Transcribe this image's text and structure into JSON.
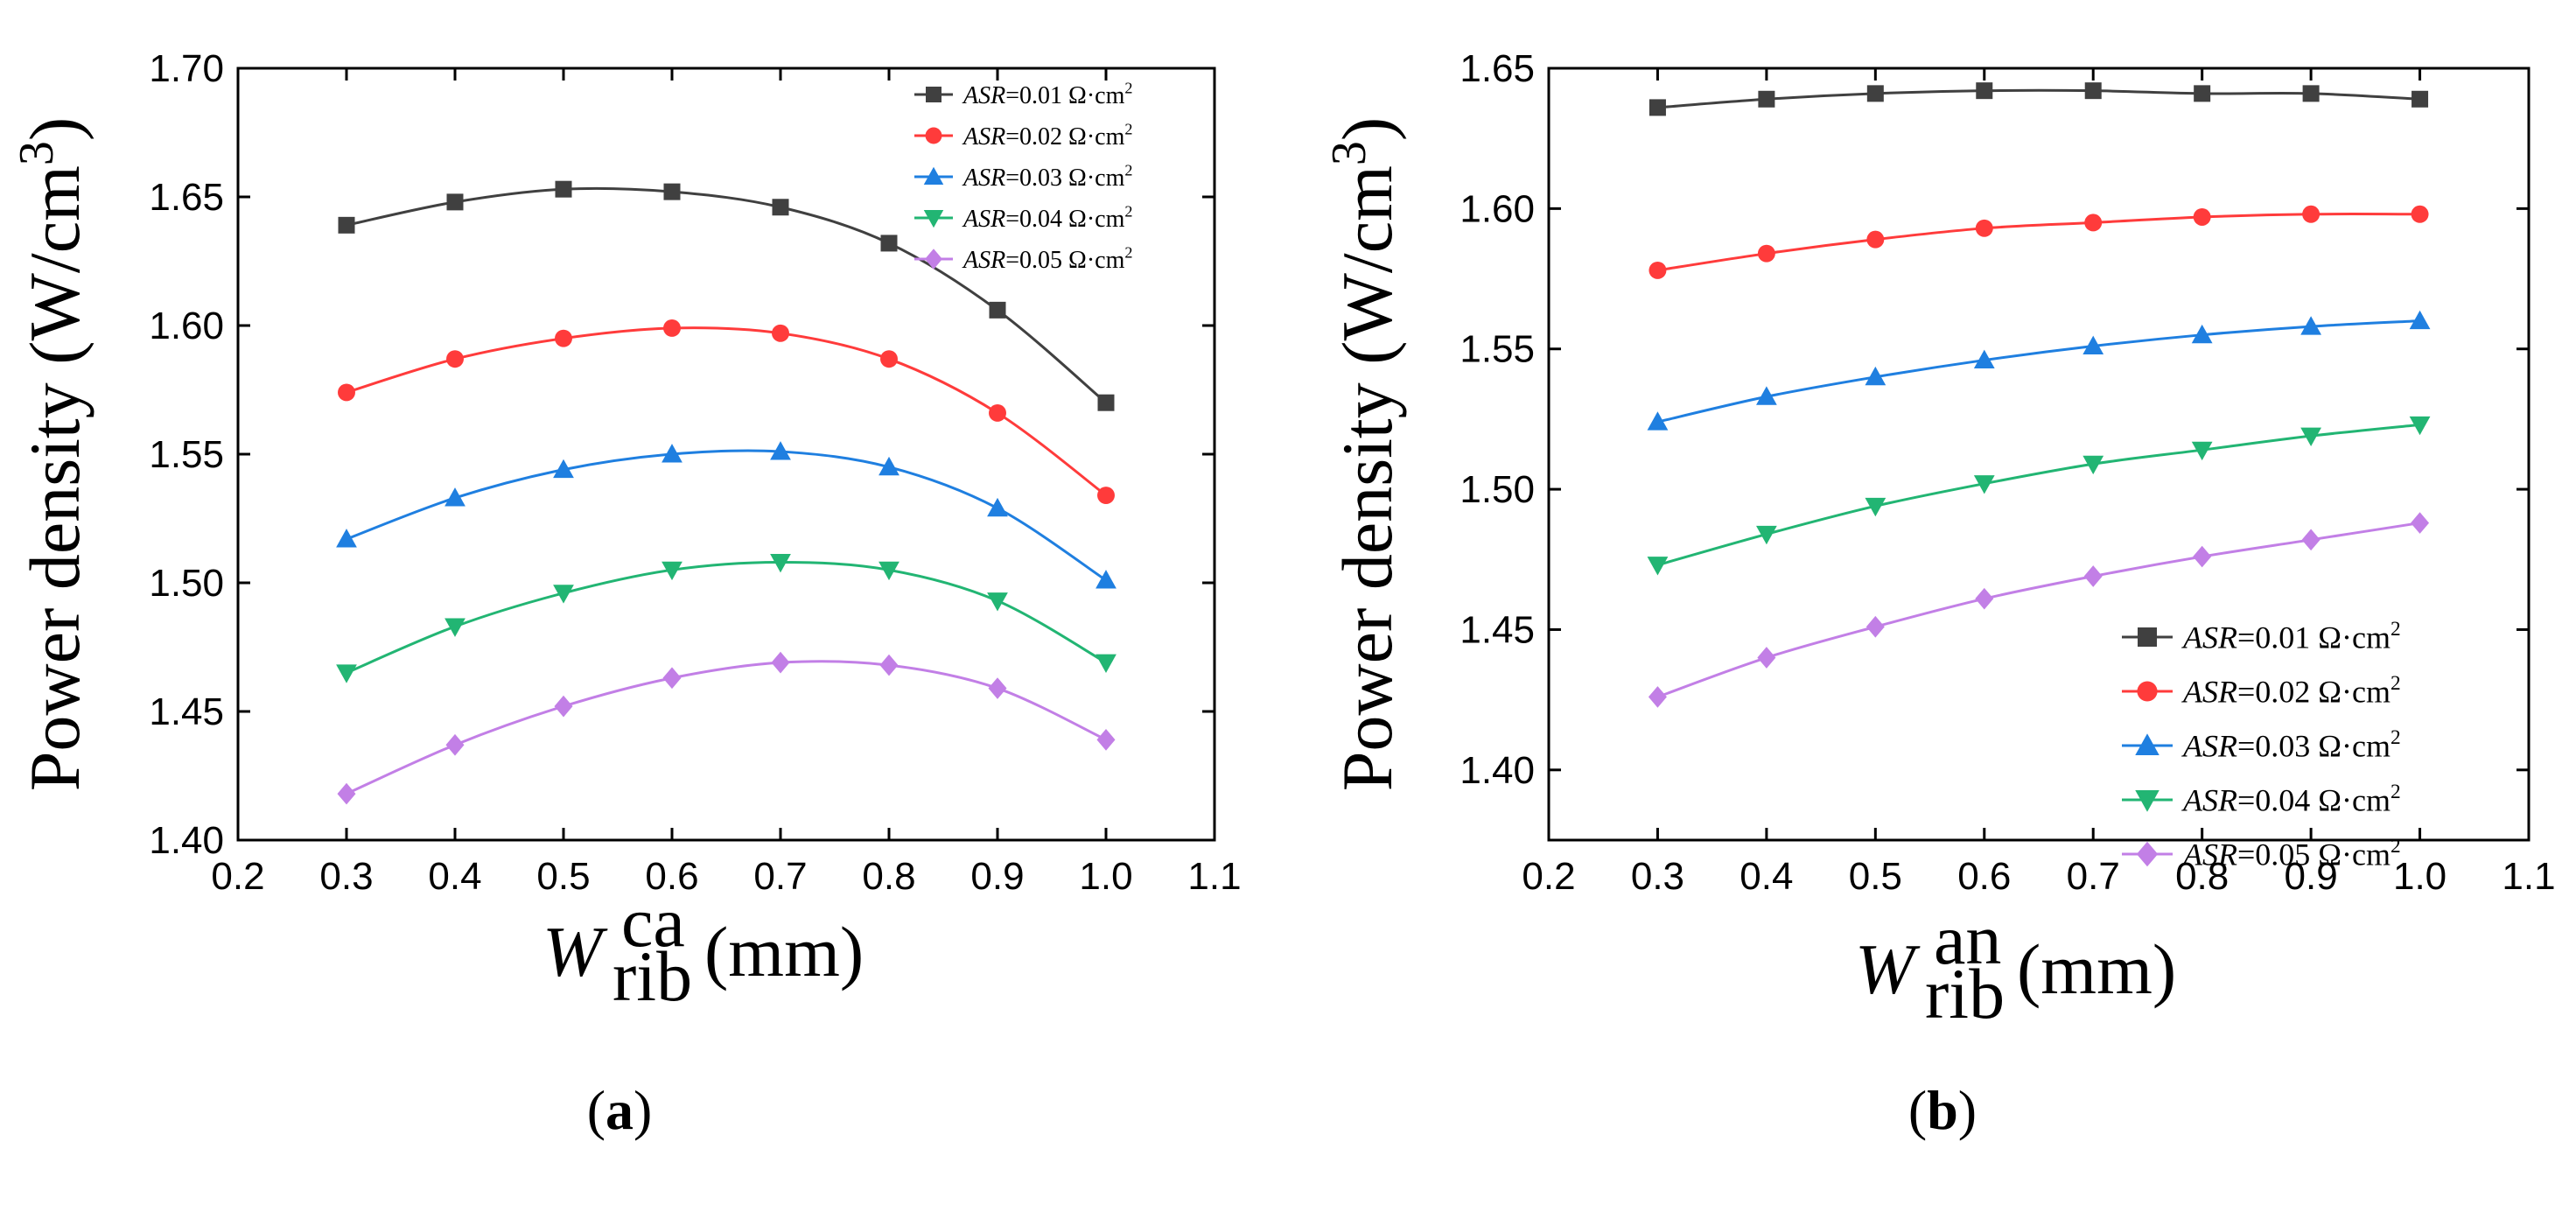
{
  "chart_data": [
    {
      "type": "line",
      "panel_label": "a",
      "title": "",
      "ylabel": "Power density (W/cm",
      "ylabel_sup": "3",
      "ylabel_close": ")",
      "xlabel_var": "W",
      "xlabel_sub": "rib",
      "xlabel_sup": "ca",
      "xlabel_unit": "(mm)",
      "xlim": [
        0.2,
        1.1
      ],
      "ylim": [
        1.4,
        1.7
      ],
      "xticks": [
        "0.2",
        "0.3",
        "0.4",
        "0.5",
        "0.6",
        "0.7",
        "0.8",
        "0.9",
        "1.0",
        "1.1"
      ],
      "yticks": [
        "1.40",
        "1.45",
        "1.50",
        "1.55",
        "1.60",
        "1.65",
        "1.70"
      ],
      "legend_position": "top-right",
      "x": [
        0.3,
        0.4,
        0.5,
        0.6,
        0.7,
        0.8,
        0.9,
        1.0
      ],
      "series": [
        {
          "name": "ASR=0.01 Ω·cm2",
          "label_var": "ASR",
          "label_val": "=0.01 Ω·cm",
          "label_sup": "2",
          "color": "#404040",
          "marker": "square",
          "values": [
            1.639,
            1.648,
            1.653,
            1.652,
            1.646,
            1.632,
            1.606,
            1.57
          ]
        },
        {
          "name": "ASR=0.02 Ω·cm2",
          "label_var": "ASR",
          "label_val": "=0.02 Ω·cm",
          "label_sup": "2",
          "color": "#ff3b3b",
          "marker": "circle",
          "values": [
            1.574,
            1.587,
            1.595,
            1.599,
            1.597,
            1.587,
            1.566,
            1.534
          ]
        },
        {
          "name": "ASR=0.03 Ω·cm2",
          "label_var": "ASR",
          "label_val": "=0.03 Ω·cm",
          "label_sup": "2",
          "color": "#1f7fe0",
          "marker": "triangle-up",
          "values": [
            1.517,
            1.533,
            1.544,
            1.55,
            1.551,
            1.545,
            1.529,
            1.501
          ]
        },
        {
          "name": "ASR=0.04 Ω·cm2",
          "label_var": "ASR",
          "label_val": "=0.04 Ω·cm",
          "label_sup": "2",
          "color": "#22b573",
          "marker": "triangle-down",
          "values": [
            1.465,
            1.483,
            1.496,
            1.505,
            1.508,
            1.505,
            1.493,
            1.469
          ]
        },
        {
          "name": "ASR=0.05 Ω·cm2",
          "label_var": "ASR",
          "label_val": "=0.05 Ω·cm",
          "label_sup": "2",
          "color": "#c27fe6",
          "marker": "diamond",
          "values": [
            1.418,
            1.437,
            1.452,
            1.463,
            1.469,
            1.468,
            1.459,
            1.439
          ]
        }
      ]
    },
    {
      "type": "line",
      "panel_label": "b",
      "title": "",
      "ylabel": "Power density (W/cm",
      "ylabel_sup": "3",
      "ylabel_close": ")",
      "xlabel_var": "W",
      "xlabel_sub": "rib",
      "xlabel_sup": "an",
      "xlabel_unit": "(mm)",
      "xlim": [
        0.2,
        1.1
      ],
      "ylim": [
        1.375,
        1.65
      ],
      "xticks": [
        "0.2",
        "0.3",
        "0.4",
        "0.5",
        "0.6",
        "0.7",
        "0.8",
        "0.9",
        "1.0",
        "1.1"
      ],
      "yticks": [
        "1.40",
        "1.45",
        "1.50",
        "1.55",
        "1.60",
        "1.65"
      ],
      "legend_position": "bottom-right",
      "x": [
        0.3,
        0.4,
        0.5,
        0.6,
        0.7,
        0.8,
        0.9,
        1.0
      ],
      "series": [
        {
          "name": "ASR=0.01 Ω·cm2",
          "label_var": "ASR",
          "label_val": "=0.01 Ω·cm",
          "label_sup": "2",
          "color": "#404040",
          "marker": "square",
          "values": [
            1.636,
            1.639,
            1.641,
            1.642,
            1.642,
            1.641,
            1.641,
            1.639
          ]
        },
        {
          "name": "ASR=0.02 Ω·cm2",
          "label_var": "ASR",
          "label_val": "=0.02 Ω·cm",
          "label_sup": "2",
          "color": "#ff3b3b",
          "marker": "circle",
          "values": [
            1.578,
            1.584,
            1.589,
            1.593,
            1.595,
            1.597,
            1.598,
            1.598
          ]
        },
        {
          "name": "ASR=0.03 Ω·cm2",
          "label_var": "ASR",
          "label_val": "=0.03 Ω·cm",
          "label_sup": "2",
          "color": "#1f7fe0",
          "marker": "triangle-up",
          "values": [
            1.524,
            1.533,
            1.54,
            1.546,
            1.551,
            1.555,
            1.558,
            1.56
          ]
        },
        {
          "name": "ASR=0.04 Ω·cm2",
          "label_var": "ASR",
          "label_val": "=0.04 Ω·cm",
          "label_sup": "2",
          "color": "#22b573",
          "marker": "triangle-down",
          "values": [
            1.473,
            1.484,
            1.494,
            1.502,
            1.509,
            1.514,
            1.519,
            1.523
          ]
        },
        {
          "name": "ASR=0.05 Ω·cm2",
          "label_var": "ASR",
          "label_val": "=0.05 Ω·cm",
          "label_sup": "2",
          "color": "#c27fe6",
          "marker": "diamond",
          "values": [
            1.426,
            1.44,
            1.451,
            1.461,
            1.469,
            1.476,
            1.482,
            1.488
          ]
        }
      ]
    }
  ]
}
